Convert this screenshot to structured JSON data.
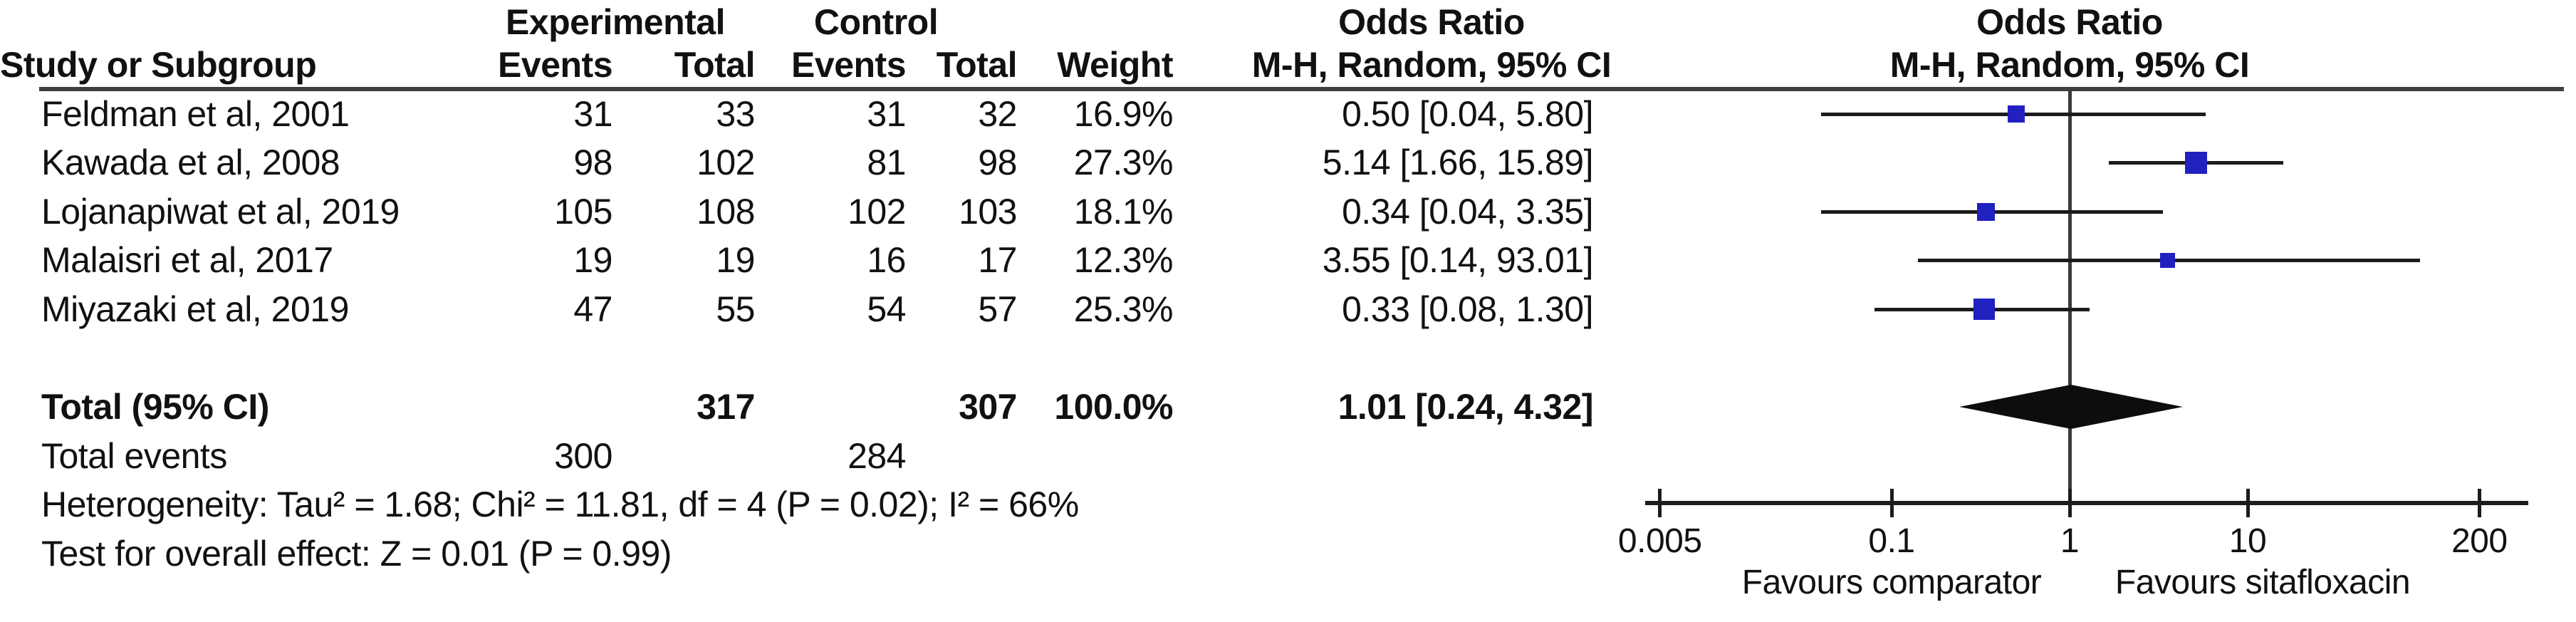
{
  "table": {
    "headers": {
      "group1": "Experimental",
      "group2": "Control",
      "study": "Study or Subgroup",
      "events": "Events",
      "total": "Total",
      "weight": "Weight",
      "or_left_title": "Odds Ratio",
      "or_left_sub": "M-H, Random, 95% CI",
      "or_right_title": "Odds Ratio",
      "or_right_sub": "M-H, Random, 95% CI"
    },
    "total_row": {
      "label": "Total (95% CI)",
      "exp_total": "317",
      "ctrl_total": "307",
      "weight": "100.0%",
      "or_ci_text": "1.01 [0.24, 4.32]"
    },
    "total_events": {
      "label": "Total events",
      "exp": "300",
      "ctrl": "284"
    },
    "heterogeneity": "Heterogeneity: Tau² = 1.68; Chi² = 11.81, df = 4 (P = 0.02); I² = 66%",
    "overall_effect": "Test for overall effect: Z = 0.01 (P = 0.99)"
  },
  "chart_data": {
    "type": "forest",
    "effect_measure": "Odds Ratio (M-H, Random, 95% CI)",
    "x_scale": "log",
    "xlim": [
      0.005,
      200
    ],
    "null_line": 1,
    "axis_ticks": [
      0.005,
      0.1,
      1,
      10,
      200
    ],
    "axis_tick_labels": [
      "0.005",
      "0.1",
      "1",
      "10",
      "200"
    ],
    "favours_left": "Favours comparator",
    "favours_right": "Favours sitafloxacin",
    "marker_color": "#2121c0",
    "studies": [
      {
        "label": "Feldman et al, 2001",
        "exp_events": "31",
        "exp_total": "33",
        "ctrl_events": "31",
        "ctrl_total": "32",
        "weight": "16.9%",
        "weight_pct": 16.9,
        "or": 0.5,
        "ci_low": 0.04,
        "ci_high": 5.8,
        "or_ci_text": "0.50 [0.04, 5.80]"
      },
      {
        "label": "Kawada et al, 2008",
        "exp_events": "98",
        "exp_total": "102",
        "ctrl_events": "81",
        "ctrl_total": "98",
        "weight": "27.3%",
        "weight_pct": 27.3,
        "or": 5.14,
        "ci_low": 1.66,
        "ci_high": 15.89,
        "or_ci_text": "5.14 [1.66, 15.89]"
      },
      {
        "label": "Lojanapiwat et al, 2019",
        "exp_events": "105",
        "exp_total": "108",
        "ctrl_events": "102",
        "ctrl_total": "103",
        "weight": "18.1%",
        "weight_pct": 18.1,
        "or": 0.34,
        "ci_low": 0.04,
        "ci_high": 3.35,
        "or_ci_text": "0.34 [0.04, 3.35]"
      },
      {
        "label": "Malaisri et al, 2017",
        "exp_events": "19",
        "exp_total": "19",
        "ctrl_events": "16",
        "ctrl_total": "17",
        "weight": "12.3%",
        "weight_pct": 12.3,
        "or": 3.55,
        "ci_low": 0.14,
        "ci_high": 93.01,
        "or_ci_text": "3.55 [0.14, 93.01]"
      },
      {
        "label": "Miyazaki et al, 2019",
        "exp_events": "47",
        "exp_total": "55",
        "ctrl_events": "54",
        "ctrl_total": "57",
        "weight": "25.3%",
        "weight_pct": 25.3,
        "or": 0.33,
        "ci_low": 0.08,
        "ci_high": 1.3,
        "or_ci_text": "0.33 [0.08, 1.30]"
      }
    ],
    "total": {
      "or": 1.01,
      "ci_low": 0.24,
      "ci_high": 4.32
    }
  }
}
